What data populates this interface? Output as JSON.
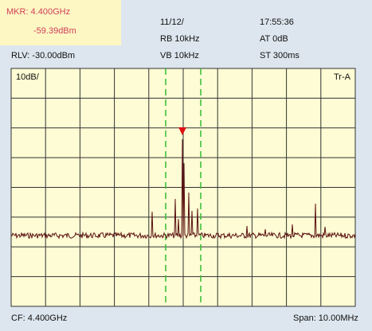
{
  "marker": {
    "frequency": "MKR: 4.400GHz",
    "level": "-59.39dBm"
  },
  "header": {
    "date": "11/12/",
    "time": "17:55:36",
    "rbw": "RB 10kHz",
    "attenuation": "AT 0dB",
    "vbw": "VB 10kHz",
    "sweep_time": "ST 300ms",
    "reference_level": "RLV: -30.00dBm"
  },
  "display": {
    "scale": "10dB/",
    "trace": "Tr-A"
  },
  "footer": {
    "center_frequency": "CF: 4.400GHz",
    "span": "Span: 10.00MHz"
  }
}
